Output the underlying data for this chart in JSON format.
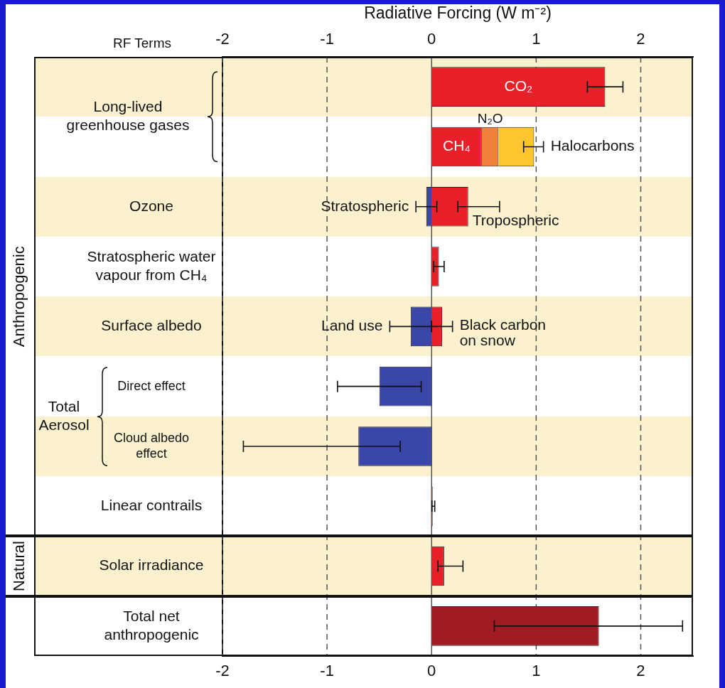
{
  "chart_data": {
    "type": "bar",
    "orientation": "horizontal",
    "stacked": true,
    "x2label": "Radiative Forcing (W m⁻²)",
    "categories": [
      null,
      null,
      "Ozone",
      "Stratospheric water vapour from CH₄",
      "Surface albedo",
      "Direct effect",
      "Cloud albedo effect",
      "Linear contrails",
      "Solar irradiance",
      "Total net anthropogenic"
    ],
    "series": [
      {
        "name": "CO₂",
        "color": "#e8202a",
        "values": [
          1.66,
          null,
          null,
          null,
          null,
          null,
          null,
          null,
          null,
          null
        ],
        "errors": [
          [
            1.49,
            1.83
          ],
          null,
          null,
          null,
          null,
          null,
          null,
          null,
          null,
          null
        ]
      },
      {
        "name": "CH₄",
        "color": "#e8202a",
        "values": [
          null,
          0.48,
          null,
          null,
          null,
          null,
          null,
          null,
          null,
          null
        ]
      },
      {
        "name": "N₂O",
        "color": "#f0803c",
        "values": [
          null,
          0.16,
          null,
          null,
          null,
          null,
          null,
          null,
          null,
          null
        ]
      },
      {
        "name": "Halocarbons",
        "color": "#fdc52f",
        "values": [
          null,
          0.34,
          null,
          null,
          null,
          null,
          null,
          null,
          null,
          null
        ],
        "errors": [
          null,
          [
            0.88,
            1.07
          ],
          null,
          null,
          null,
          null,
          null,
          null,
          null,
          null
        ]
      },
      {
        "name": "Stratospheric",
        "color": "#3a46a8",
        "values": [
          null,
          null,
          -0.05,
          null,
          null,
          null,
          null,
          null,
          null,
          null
        ],
        "errors": [
          null,
          null,
          [
            -0.15,
            0.05
          ],
          null,
          null,
          null,
          null,
          null,
          null,
          null
        ]
      },
      {
        "name": "Tropospheric",
        "color": "#e8202a",
        "values": [
          null,
          null,
          0.35,
          null,
          null,
          null,
          null,
          null,
          null,
          null
        ],
        "errors": [
          null,
          null,
          [
            0.25,
            0.65
          ],
          null,
          null,
          null,
          null,
          null,
          null,
          null
        ]
      },
      {
        "color": "#e8202a",
        "values": [
          null,
          null,
          null,
          0.07,
          null,
          null,
          null,
          0.01,
          0.12,
          null
        ],
        "errors": [
          null,
          null,
          null,
          [
            0.02,
            0.12
          ],
          null,
          null,
          null,
          [
            0.003,
            0.03
          ],
          [
            0.06,
            0.3
          ],
          null
        ]
      },
      {
        "name": "Land use",
        "color": "#3a46a8",
        "values": [
          null,
          null,
          null,
          null,
          -0.2,
          null,
          null,
          null,
          null,
          null
        ],
        "errors": [
          null,
          null,
          null,
          null,
          [
            -0.4,
            0
          ],
          null,
          null,
          null,
          null,
          null
        ]
      },
      {
        "name": "Black carbon on snow",
        "color": "#e8202a",
        "values": [
          null,
          null,
          null,
          null,
          0.1,
          null,
          null,
          null,
          null,
          null
        ],
        "errors": [
          null,
          null,
          null,
          null,
          [
            0,
            0.2
          ],
          null,
          null,
          null,
          null,
          null
        ]
      },
      {
        "color": "#3a46a8",
        "values": [
          null,
          null,
          null,
          null,
          null,
          -0.5,
          -0.7,
          null,
          null,
          null
        ],
        "errors": [
          null,
          null,
          null,
          null,
          null,
          [
            -0.9,
            -0.1
          ],
          [
            -1.8,
            -0.3
          ],
          null,
          null,
          null
        ]
      },
      {
        "color": "#a01b22",
        "values": [
          null,
          null,
          null,
          null,
          null,
          null,
          null,
          null,
          null,
          1.6
        ],
        "errors": [
          null,
          null,
          null,
          null,
          null,
          null,
          null,
          null,
          null,
          [
            0.6,
            2.4
          ]
        ]
      }
    ],
    "xlim": [
      -2,
      2.5
    ],
    "xticks": [
      -2,
      -1,
      0,
      1,
      2
    ],
    "x2lim": [
      -2,
      2.5
    ],
    "x2ticks": [
      -2,
      -1,
      0,
      1,
      2
    ],
    "grid": "x",
    "annotations": [
      "RF Terms",
      "Long-lived greenhouse gases",
      "Total Aerosol",
      "Anthropogenic",
      "Natural"
    ]
  }
}
